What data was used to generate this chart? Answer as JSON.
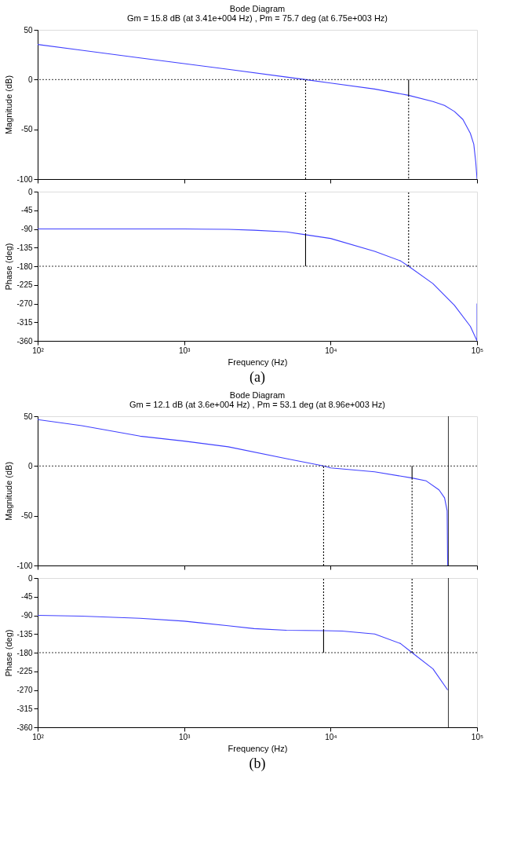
{
  "chart_data": [
    {
      "type": "line",
      "title": "Bode Diagram",
      "subtitle": "Gm = 15.8 dB (at 3.41e+004 Hz) ,  Pm = 75.7 deg (at 6.75e+003 Hz)",
      "ylabel": "Magnitude (dB)",
      "log": "x",
      "grid": false,
      "tick_labels": "y",
      "xlim": [
        100,
        100000
      ],
      "xticks": [
        {
          "value": 100,
          "label": null
        },
        {
          "value": 1000,
          "label": null
        },
        {
          "value": 10000,
          "label": null
        },
        {
          "value": 100000,
          "label": null
        }
      ],
      "ylim": [
        -100,
        50
      ],
      "yticks": [
        -100,
        -50,
        0,
        50
      ],
      "series": [
        {
          "color": "#4040ff",
          "x": [
            100,
            200,
            500,
            1000,
            2000,
            5000,
            6750,
            10000,
            20000,
            34100,
            50000,
            60000,
            70000,
            80000,
            90000,
            95000,
            98000,
            100000
          ],
          "values": [
            35.3,
            29.5,
            21.8,
            16,
            10.3,
            2.5,
            0,
            -3.5,
            -9.5,
            -15.8,
            -22,
            -26,
            -32,
            -40,
            -54,
            -65,
            -83,
            -100
          ]
        },
        {
          "color": "#000000",
          "line_style": "dotted",
          "x": [
            6750,
            6750
          ],
          "values": [
            -100,
            0
          ]
        },
        {
          "color": "#000000",
          "line_style": "solid",
          "x": [
            34100,
            34100
          ],
          "values": [
            0,
            -15.8
          ]
        },
        {
          "color": "#000000",
          "line_style": "dotted",
          "x": [
            34100,
            34100
          ],
          "values": [
            -15.8,
            -100
          ]
        }
      ],
      "ref_lines": [
        {
          "axis": "y",
          "value": 0,
          "color": "#000000",
          "line_style": "dotted"
        }
      ]
    },
    {
      "type": "line",
      "xlabel": "Frequency  (Hz)",
      "ylabel": "Phase (deg)",
      "log": "x",
      "grid": false,
      "annotations": [
        "(a)"
      ],
      "xlim": [
        100,
        100000
      ],
      "xticks": [
        {
          "value": 100,
          "label": "10²"
        },
        {
          "value": 1000,
          "label": "10³"
        },
        {
          "value": 10000,
          "label": "10⁴"
        },
        {
          "value": 100000,
          "label": "10⁵"
        }
      ],
      "ylim": [
        -360,
        0
      ],
      "yticks": [
        -360,
        -315,
        -270,
        -225,
        -180,
        -135,
        -90,
        -45,
        0
      ],
      "series": [
        {
          "color": "#4040ff",
          "x": [
            100,
            1000,
            2000,
            3000,
            5000,
            6750,
            10000,
            20000,
            30000,
            34100,
            50000,
            70000,
            90000,
            100000,
            100000
          ],
          "values": [
            -90,
            -90,
            -91,
            -93,
            -97,
            -104,
            -113,
            -144,
            -167,
            -180,
            -222,
            -274,
            -325,
            -360,
            -270
          ]
        },
        {
          "color": "#000000",
          "line_style": "solid",
          "x": [
            6750,
            6750
          ],
          "values": [
            -180,
            -104
          ]
        },
        {
          "color": "#000000",
          "line_style": "dotted",
          "x": [
            6750,
            6750
          ],
          "values": [
            -104,
            0
          ]
        },
        {
          "color": "#000000",
          "line_style": "dotted",
          "x": [
            34100,
            34100
          ],
          "values": [
            -180,
            0
          ]
        }
      ],
      "ref_lines": [
        {
          "axis": "y",
          "value": -180,
          "color": "#000000",
          "line_style": "dotted"
        }
      ]
    },
    {
      "type": "line",
      "title": "Bode Diagram",
      "subtitle": "Gm = 12.1 dB (at 3.6e+004 Hz) ,  Pm = 53.1 deg (at 8.96e+003 Hz)",
      "ylabel": "Magnitude (dB)",
      "log": "x",
      "grid": false,
      "tick_labels": "y",
      "xlim": [
        100,
        100000
      ],
      "xticks": [
        {
          "value": 100,
          "label": null
        },
        {
          "value": 1000,
          "label": null
        },
        {
          "value": 10000,
          "label": null
        },
        {
          "value": 100000,
          "label": null
        }
      ],
      "ylim": [
        -100,
        50
      ],
      "yticks": [
        -100,
        -50,
        0,
        50
      ],
      "series": [
        {
          "color": "#4040ff",
          "x": [
            100,
            200,
            500,
            1000,
            2000,
            5000,
            8960,
            10000,
            20000,
            36000,
            45000,
            55000,
            60000,
            62500,
            63000
          ],
          "values": [
            46.6,
            40.5,
            30,
            25,
            19.3,
            7.4,
            0,
            -1.9,
            -5.8,
            -12.1,
            -15,
            -24,
            -32,
            -45,
            -100
          ]
        },
        {
          "color": "#000000",
          "line_style": "dotted",
          "x": [
            8960,
            8960
          ],
          "values": [
            -100,
            0
          ]
        },
        {
          "color": "#000000",
          "line_style": "solid",
          "x": [
            36000,
            36000
          ],
          "values": [
            0,
            -12.1
          ]
        },
        {
          "color": "#000000",
          "line_style": "dotted",
          "x": [
            36000,
            36000
          ],
          "values": [
            -12.1,
            -100
          ]
        }
      ],
      "ref_lines": [
        {
          "axis": "y",
          "value": 0,
          "color": "#000000",
          "line_style": "dotted"
        },
        {
          "axis": "x",
          "value": 63700,
          "color": "#000000",
          "line_style": "solid"
        }
      ]
    },
    {
      "type": "line",
      "xlabel": "Frequency  (Hz)",
      "ylabel": "Phase (deg)",
      "log": "x",
      "grid": false,
      "annotations": [
        "(b)"
      ],
      "xlim": [
        100,
        100000
      ],
      "xticks": [
        {
          "value": 100,
          "label": "10²"
        },
        {
          "value": 1000,
          "label": "10³"
        },
        {
          "value": 10000,
          "label": "10⁴"
        },
        {
          "value": 100000,
          "label": "10⁵"
        }
      ],
      "ylim": [
        -360,
        0
      ],
      "yticks": [
        -360,
        -315,
        -270,
        -225,
        -180,
        -135,
        -90,
        -45,
        0
      ],
      "series": [
        {
          "color": "#4040ff",
          "x": [
            100,
            200,
            500,
            1000,
            2000,
            3000,
            5000,
            8960,
            12000,
            20000,
            30000,
            36000,
            50000,
            63000
          ],
          "values": [
            -90,
            -92,
            -97,
            -104,
            -115,
            -122,
            -126,
            -127,
            -128,
            -135,
            -158,
            -180,
            -219,
            -270
          ]
        },
        {
          "color": "#000000",
          "line_style": "solid",
          "x": [
            8960,
            8960
          ],
          "values": [
            -180,
            -127
          ]
        },
        {
          "color": "#000000",
          "line_style": "dotted",
          "x": [
            8960,
            8960
          ],
          "values": [
            -127,
            0
          ]
        },
        {
          "color": "#000000",
          "line_style": "dotted",
          "x": [
            36000,
            36000
          ],
          "values": [
            -180,
            0
          ]
        }
      ],
      "ref_lines": [
        {
          "axis": "y",
          "value": -180,
          "color": "#000000",
          "line_style": "dotted"
        },
        {
          "axis": "x",
          "value": 63700,
          "color": "#000000",
          "line_style": "solid"
        }
      ]
    }
  ]
}
